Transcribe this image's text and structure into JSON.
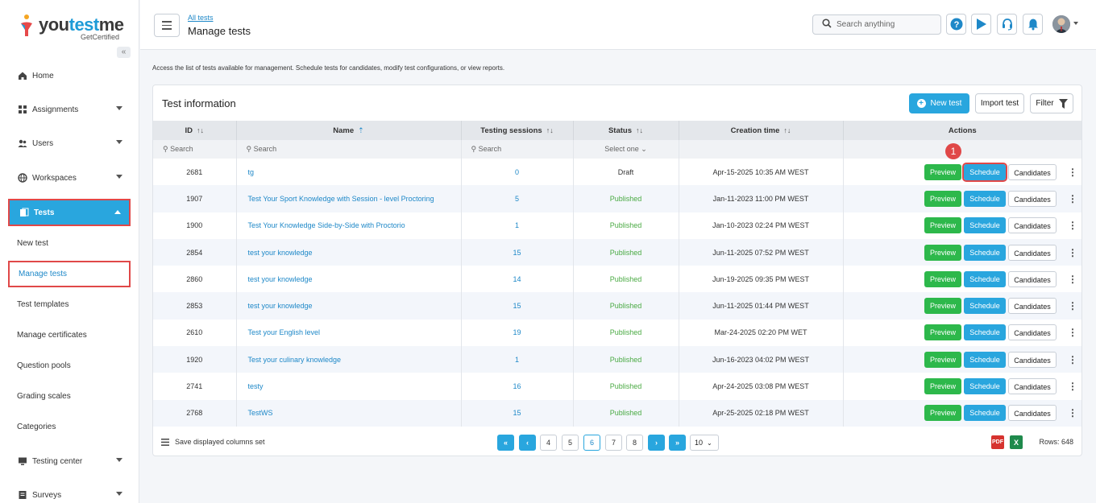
{
  "brand": {
    "name_part1": "you",
    "name_part2": "test",
    "name_part3": "me",
    "tagline": "GetCertified"
  },
  "sidebar": {
    "collapse_label": "«",
    "items": [
      {
        "label": "Home",
        "icon": "home-icon"
      },
      {
        "label": "Assignments",
        "icon": "assignments-icon"
      },
      {
        "label": "Users",
        "icon": "users-icon"
      },
      {
        "label": "Workspaces",
        "icon": "globe-icon"
      },
      {
        "label": "Tests",
        "icon": "tests-icon"
      },
      {
        "label": "Testing center",
        "icon": "monitor-icon"
      },
      {
        "label": "Surveys",
        "icon": "surveys-icon"
      }
    ],
    "sub_items": [
      "New test",
      "Manage tests",
      "Test templates",
      "Manage certificates",
      "Question pools",
      "Grading scales",
      "Categories"
    ]
  },
  "header": {
    "breadcrumb": "All tests",
    "title": "Manage tests",
    "search_placeholder": "Search anything"
  },
  "description": "Access the list of tests available for management. Schedule tests for candidates, modify test configurations, or view reports.",
  "card": {
    "title": "Test information",
    "new_test": "New test",
    "import_test": "Import test",
    "filter": "Filter",
    "columns": [
      "ID",
      "Name",
      "Testing sessions",
      "Status",
      "Creation time",
      "Actions"
    ],
    "filter_placeholders": {
      "id": "Search",
      "name": "Search",
      "sessions": "Search",
      "status": "Select one"
    },
    "action_labels": {
      "preview": "Preview",
      "schedule": "Schedule",
      "candidates": "Candidates"
    },
    "callout_number": "1",
    "rows": [
      {
        "id": "2681",
        "name": "tg",
        "sessions": "0",
        "status": "Draft",
        "created": "Apr-15-2025 10:35 AM WEST"
      },
      {
        "id": "1907",
        "name": "Test Your Sport Knowledge with Session - level Proctoring",
        "sessions": "5",
        "status": "Published",
        "created": "Jan-11-2023 11:00 PM WEST"
      },
      {
        "id": "1900",
        "name": "Test Your Knowledge Side-by-Side with Proctorio",
        "sessions": "1",
        "status": "Published",
        "created": "Jan-10-2023 02:24 PM WEST"
      },
      {
        "id": "2854",
        "name": "test your knowledge",
        "sessions": "15",
        "status": "Published",
        "created": "Jun-11-2025 07:52 PM WEST"
      },
      {
        "id": "2860",
        "name": "test your knowledge",
        "sessions": "14",
        "status": "Published",
        "created": "Jun-19-2025 09:35 PM WEST"
      },
      {
        "id": "2853",
        "name": "test your knowledge",
        "sessions": "15",
        "status": "Published",
        "created": "Jun-11-2025 01:44 PM WEST"
      },
      {
        "id": "2610",
        "name": "Test your English level",
        "sessions": "19",
        "status": "Published",
        "created": "Mar-24-2025 02:20 PM WET"
      },
      {
        "id": "1920",
        "name": "Test your culinary knowledge",
        "sessions": "1",
        "status": "Published",
        "created": "Jun-16-2023 04:02 PM WEST"
      },
      {
        "id": "2741",
        "name": "testy",
        "sessions": "16",
        "status": "Published",
        "created": "Apr-24-2025 03:08 PM WEST"
      },
      {
        "id": "2768",
        "name": "TestWS",
        "sessions": "15",
        "status": "Published",
        "created": "Apr-25-2025 02:18 PM WEST"
      }
    ],
    "footer": {
      "save_columns": "Save displayed columns set",
      "pages": [
        "4",
        "5",
        "6",
        "7",
        "8"
      ],
      "current_page": "6",
      "page_size": "10",
      "rows_label": "Rows: 648",
      "pdf_label": "PDF",
      "excel_label": "X"
    }
  },
  "colors": {
    "accent": "#29a6de",
    "success": "#2db84b",
    "highlight": "#e04848"
  }
}
